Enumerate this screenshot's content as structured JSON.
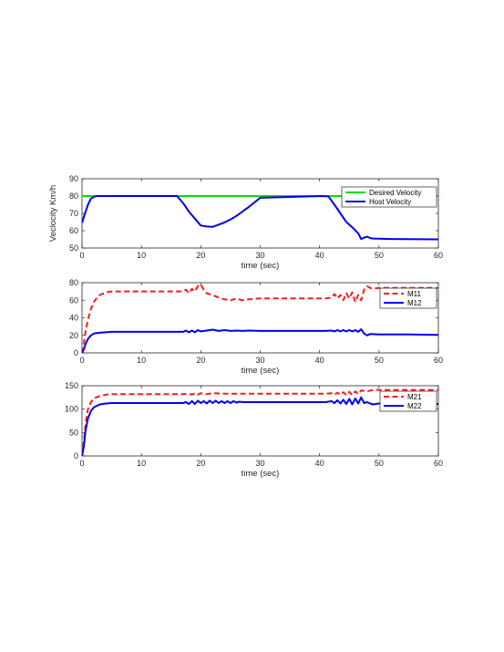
{
  "chart_data": [
    {
      "type": "line",
      "xlabel": "time (sec)",
      "ylabel": "Veclocity Km/h",
      "xlim": [
        0,
        60
      ],
      "ylim": [
        50,
        90
      ],
      "xticks": [
        0,
        10,
        20,
        30,
        40,
        50,
        60
      ],
      "yticks": [
        50,
        60,
        70,
        80,
        90
      ],
      "legend_position": "top-right",
      "series": [
        {
          "name": "Desired Velocity",
          "color": "#00e000",
          "style": "solid",
          "x": [
            0,
            60
          ],
          "y": [
            80,
            80
          ]
        },
        {
          "name": "Host Velocity",
          "color": "#0000ee",
          "style": "solid",
          "x": [
            0,
            0.5,
            1,
            1.5,
            2,
            2.5,
            16,
            17,
            18,
            19,
            20,
            21,
            22,
            23,
            24,
            25,
            26,
            27,
            28,
            29,
            30,
            40.5,
            41.5,
            42.5,
            43.5,
            44.5,
            45.5,
            46.5,
            47,
            47.5,
            48,
            48.5,
            49,
            50,
            52,
            55,
            60
          ],
          "y": [
            64.5,
            70,
            75,
            78.5,
            79.5,
            80,
            80,
            76,
            71,
            67,
            63,
            62.4,
            62.2,
            63.5,
            64.8,
            66.5,
            68.5,
            71,
            73.5,
            76.2,
            79,
            80,
            79.8,
            75,
            70,
            65,
            62,
            58.5,
            55.2,
            56,
            56.5,
            55.8,
            55.5,
            55.4,
            55.2,
            55.1,
            55
          ]
        }
      ]
    },
    {
      "type": "line",
      "xlabel": "time (sec)",
      "ylabel": "",
      "xlim": [
        0,
        60
      ],
      "ylim": [
        0,
        80
      ],
      "xticks": [
        0,
        10,
        20,
        30,
        40,
        50,
        60
      ],
      "yticks": [
        0,
        20,
        40,
        60,
        80
      ],
      "legend_position": "top-right",
      "series": [
        {
          "name": "M11",
          "color": "#ff1a1a",
          "style": "dashed",
          "x": [
            0,
            0.3,
            0.6,
            1,
            1.5,
            2,
            2.5,
            3,
            4,
            5,
            17,
            17.5,
            18,
            18.5,
            19,
            19.5,
            20,
            20.5,
            21,
            22,
            23,
            24,
            25,
            26,
            27,
            28,
            30,
            41,
            42,
            42.5,
            43,
            43.5,
            44,
            44.5,
            45,
            45.5,
            46,
            46.5,
            47,
            47.5,
            48,
            48.5,
            49,
            50,
            55,
            60
          ],
          "y": [
            0,
            10,
            25,
            38,
            50,
            58,
            63,
            66,
            69,
            70,
            70,
            72,
            68,
            73,
            70,
            76,
            78,
            72,
            68,
            66,
            63,
            61,
            60,
            62,
            60,
            61,
            62,
            62,
            63,
            67,
            62,
            66,
            60,
            68,
            62,
            69,
            58,
            66,
            60,
            72,
            76,
            74,
            73,
            74,
            74,
            74
          ]
        },
        {
          "name": "M12",
          "color": "#0000ee",
          "style": "solid",
          "x": [
            0,
            0.3,
            0.6,
            1,
            1.5,
            2,
            3,
            4,
            5,
            17,
            17.5,
            18,
            18.5,
            19,
            19.5,
            20,
            21,
            22,
            23,
            24,
            25,
            26,
            27,
            28,
            30,
            41,
            42,
            42.5,
            43,
            43.5,
            44,
            44.5,
            45,
            45.5,
            46,
            46.5,
            47,
            47.5,
            48,
            48.5,
            50,
            55,
            60
          ],
          "y": [
            0,
            4,
            10,
            16,
            20,
            22,
            23,
            23.5,
            24,
            24,
            25.5,
            23.5,
            25.5,
            23.5,
            26,
            24.5,
            25.5,
            26.5,
            25,
            26,
            25,
            25.5,
            25,
            25.5,
            25,
            25,
            25.5,
            24.5,
            26,
            24.5,
            26,
            24.5,
            26,
            24.5,
            26,
            24,
            27,
            22,
            20,
            21.5,
            21,
            21,
            20.5
          ]
        }
      ]
    },
    {
      "type": "line",
      "xlabel": "time (sec)",
      "ylabel": "",
      "xlim": [
        0,
        60
      ],
      "ylim": [
        0,
        150
      ],
      "xticks": [
        0,
        10,
        20,
        30,
        40,
        50,
        60
      ],
      "yticks": [
        0,
        50,
        100,
        150
      ],
      "legend_position": "top-right",
      "series": [
        {
          "name": "M21",
          "color": "#ff1a1a",
          "style": "dashed",
          "x": [
            0,
            0.3,
            0.6,
            1,
            1.5,
            2,
            3,
            4,
            5,
            17,
            18,
            18.5,
            19,
            19.5,
            20,
            21,
            22,
            24,
            26,
            28,
            30,
            41,
            42,
            42.5,
            43,
            43.5,
            44,
            44.5,
            45,
            45.5,
            46,
            46.5,
            47,
            48,
            49,
            50,
            55,
            60
          ],
          "y": [
            0,
            30,
            70,
            100,
            115,
            123,
            128,
            131,
            132,
            132,
            133,
            131,
            134,
            131,
            134,
            132,
            134,
            133,
            133,
            133,
            133,
            133,
            134,
            131,
            135,
            131,
            136,
            130,
            137,
            130,
            138,
            132,
            140,
            138,
            141,
            141,
            141,
            141
          ]
        },
        {
          "name": "M22",
          "color": "#0000ee",
          "style": "solid",
          "x": [
            0,
            0.3,
            0.6,
            1,
            1.5,
            2,
            3,
            4,
            5,
            17,
            17.5,
            18,
            18.5,
            19,
            19.5,
            20,
            20.5,
            21,
            21.5,
            22,
            22.5,
            23,
            23.5,
            24,
            24.5,
            25,
            25.5,
            26,
            26.5,
            27,
            28,
            30,
            41,
            42,
            42.5,
            43,
            43.5,
            44,
            44.5,
            45,
            45.5,
            46,
            46.5,
            47,
            47.5,
            48,
            48.5,
            49,
            50,
            55,
            58,
            60
          ],
          "y": [
            0,
            20,
            55,
            80,
            96,
            104,
            110,
            112,
            113,
            113,
            115,
            111,
            117,
            111,
            118,
            113,
            117,
            112,
            118,
            113,
            118,
            113,
            117,
            113,
            117,
            113,
            117,
            114,
            116,
            115,
            115,
            115,
            115,
            117,
            113,
            119,
            112,
            120,
            111,
            122,
            110,
            123,
            112,
            125,
            113,
            115,
            112,
            110,
            112,
            112,
            111,
            111
          ]
        }
      ]
    }
  ]
}
